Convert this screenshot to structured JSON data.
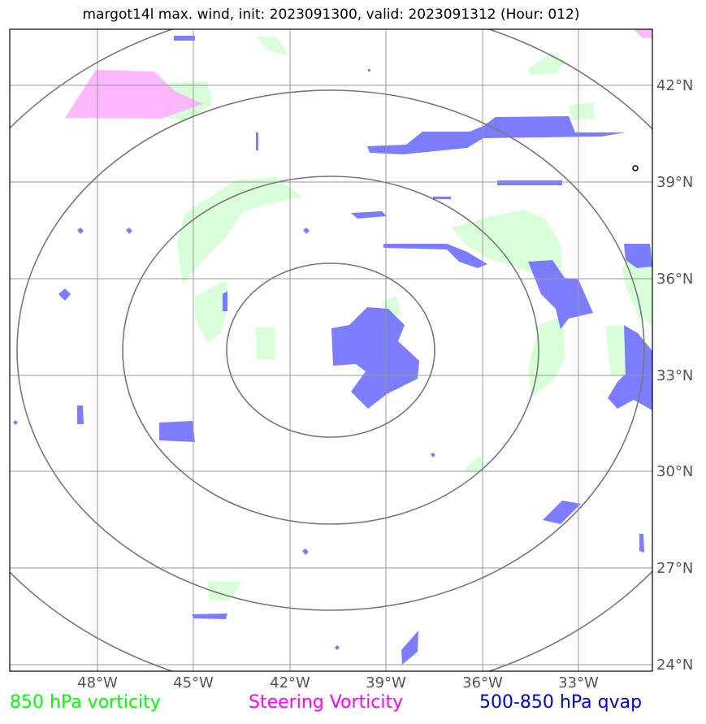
{
  "title": "margot14l max. wind, init: 2023091300, valid: 2023091312 (Hour: 012)",
  "lon_labels": [
    "48°W",
    "45°W",
    "42°W",
    "39°W",
    "36°W",
    "33°W"
  ],
  "lat_labels": [
    "42°N",
    "39°N",
    "36°N",
    "33°N",
    "30°N",
    "27°N",
    "24°N"
  ],
  "legend": [
    {
      "label": "850 hPa vorticity",
      "color": "#00ff00"
    },
    {
      "label": "Steering Vorticity",
      "color": "#ff00ff"
    },
    {
      "label": "500-850 hPa qvap",
      "color": "#0000cc"
    }
  ],
  "colors": {
    "vorticity_fill": "#ccffcc",
    "steering_fill": "#ffaaff",
    "qvap_fill": "#6666ff",
    "grid": "#999999",
    "range_rings": "#777777"
  }
}
